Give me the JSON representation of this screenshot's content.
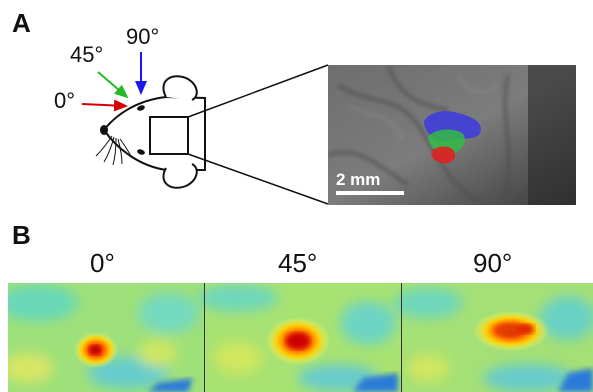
{
  "panel_a": {
    "letter": "A",
    "angles": [
      "0°",
      "45°",
      "90°"
    ],
    "arrow_colors": [
      "#d40000",
      "#22bb22",
      "#1a1aee"
    ],
    "scale_bar": "2 mm",
    "overlay_colors": {
      "blue": "#3b3be0",
      "green": "#33bb44",
      "red": "#e02020"
    }
  },
  "panel_b": {
    "letter": "B",
    "angles": [
      "0°",
      "45°",
      "90°"
    ],
    "colormap": "jet"
  }
}
